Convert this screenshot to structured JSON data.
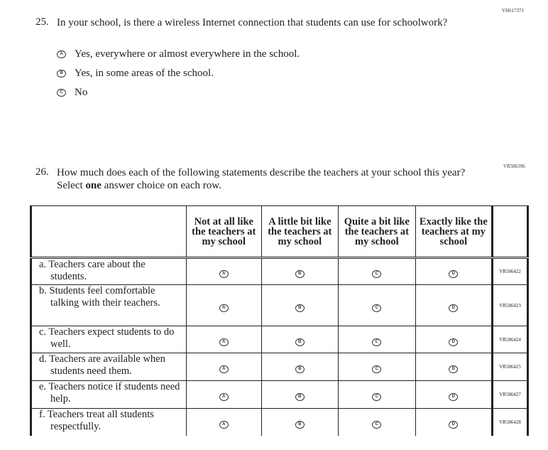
{
  "q25": {
    "code": "VH617371",
    "number": "25.",
    "text": "In your school, is there a wireless Internet connection that students can use for schoolwork?",
    "options": [
      {
        "letter": "A",
        "label": "Yes, everywhere or almost everywhere in the school."
      },
      {
        "letter": "B",
        "label": "Yes, in some areas of the school."
      },
      {
        "letter": "C",
        "label": "No"
      }
    ]
  },
  "q26": {
    "code": "VR586396",
    "number": "26.",
    "text_before": "How much does each of the following statements describe the teachers at your school this year? Select ",
    "text_bold": "one",
    "text_after": " answer choice on each row.",
    "columns": [
      "Not at all like the teachers at my school",
      "A little bit like the teachers at my school",
      "Quite a bit like the teachers at my school",
      "Exactly like the teachers at my school"
    ],
    "letters": [
      "A",
      "B",
      "C",
      "D"
    ],
    "rows": [
      {
        "label": "a. Teachers care about the students.",
        "code": "VR586422"
      },
      {
        "label": "b. Students feel comfortable talking with their teachers.",
        "code": "VR586423"
      },
      {
        "label": "c. Teachers expect students to do well.",
        "code": "VR586424"
      },
      {
        "label": "d. Teachers are available when students need them.",
        "code": "VR586425"
      },
      {
        "label": "e. Teachers notice if students need help.",
        "code": "VR586427"
      },
      {
        "label": "f. Teachers treat all students respectfully.",
        "code": "VR586428"
      }
    ]
  }
}
